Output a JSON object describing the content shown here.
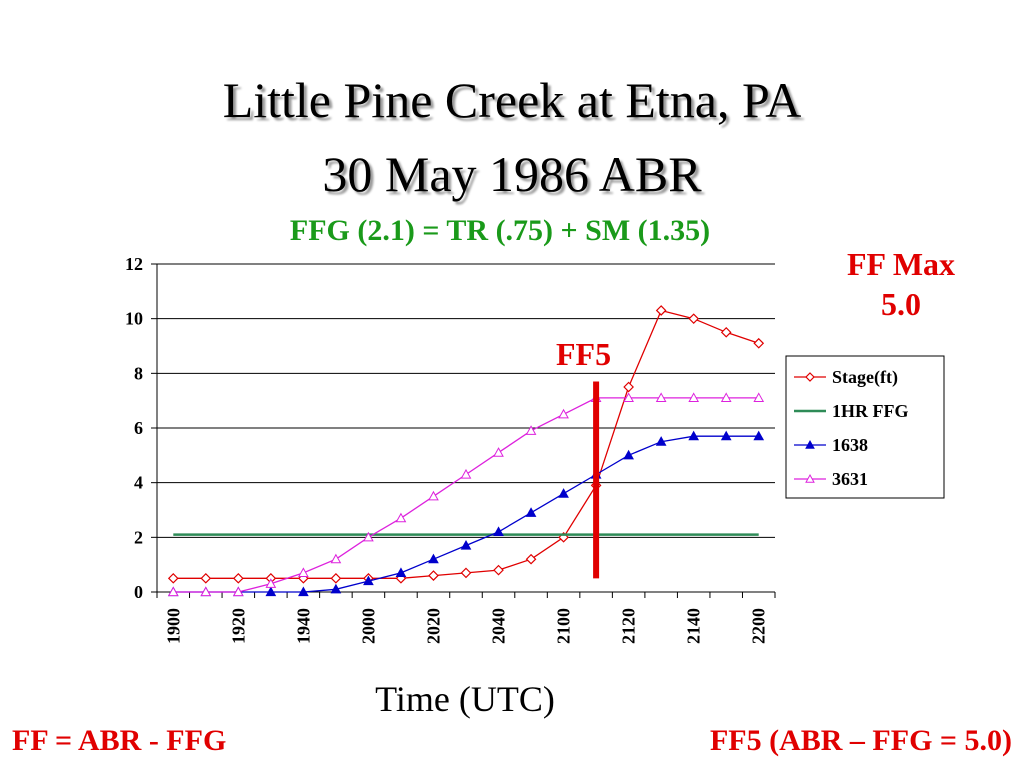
{
  "slide": {
    "title_line1": "Little Pine Creek at Etna, PA",
    "title_line2": "30 May 1986 ABR",
    "equation": "FFG (2.1) = TR (.75) + SM (1.35)",
    "ff_max_line1": "FF Max",
    "ff_max_line2": "5.0",
    "ff5_label": "FF5",
    "footer_left": "FF = ABR - FFG",
    "footer_right": "FF5 (ABR – FFG = 5.0)"
  },
  "chart_data": {
    "type": "line",
    "title": "",
    "xlabel": "Time (UTC)",
    "ylabel": "",
    "ylim": [
      0,
      12
    ],
    "yticks": [
      0,
      2,
      4,
      6,
      8,
      10,
      12
    ],
    "categories": [
      "1900",
      "1910",
      "1920",
      "1930",
      "1940",
      "1950",
      "2000",
      "2010",
      "2020",
      "2030",
      "2040",
      "2050",
      "2100",
      "2110",
      "2120",
      "2130",
      "2140",
      "2150",
      "2200"
    ],
    "xtick_labels": [
      "1900",
      "1920",
      "1940",
      "2000",
      "2020",
      "2040",
      "2100",
      "2120",
      "2140",
      "2200"
    ],
    "grid": "horizontal",
    "legend_position": "right",
    "series": [
      {
        "name": "Stage(ft)",
        "color": "#e00000",
        "marker": "diamond-open",
        "values": [
          0.5,
          0.5,
          0.5,
          0.5,
          0.5,
          0.5,
          0.5,
          0.5,
          0.6,
          0.7,
          0.8,
          1.2,
          2.0,
          3.9,
          7.5,
          10.3,
          10.0,
          9.5,
          9.1
        ]
      },
      {
        "name": "1HR FFG",
        "color": "#2e8b57",
        "marker": "none",
        "values": [
          2.1,
          2.1,
          2.1,
          2.1,
          2.1,
          2.1,
          2.1,
          2.1,
          2.1,
          2.1,
          2.1,
          2.1,
          2.1,
          2.1,
          2.1,
          2.1,
          2.1,
          2.1,
          2.1
        ]
      },
      {
        "name": "1638",
        "color": "#0000cc",
        "marker": "triangle-filled",
        "values": [
          0.0,
          0.0,
          0.0,
          0.0,
          0.0,
          0.1,
          0.4,
          0.7,
          1.2,
          1.7,
          2.2,
          2.9,
          3.6,
          4.3,
          5.0,
          5.5,
          5.7,
          5.7,
          5.7
        ]
      },
      {
        "name": "3631",
        "color": "#dd22dd",
        "marker": "triangle-open",
        "values": [
          0.0,
          0.0,
          0.0,
          0.3,
          0.7,
          1.2,
          2.0,
          2.7,
          3.5,
          4.3,
          5.1,
          5.9,
          6.5,
          7.1,
          7.1,
          7.1,
          7.1,
          7.1,
          7.1
        ]
      }
    ],
    "annotations": [
      {
        "label": "FF5",
        "type": "vertical-line",
        "color": "#e00000",
        "category": "2110",
        "from": 0.5,
        "to": 7.7
      }
    ]
  }
}
